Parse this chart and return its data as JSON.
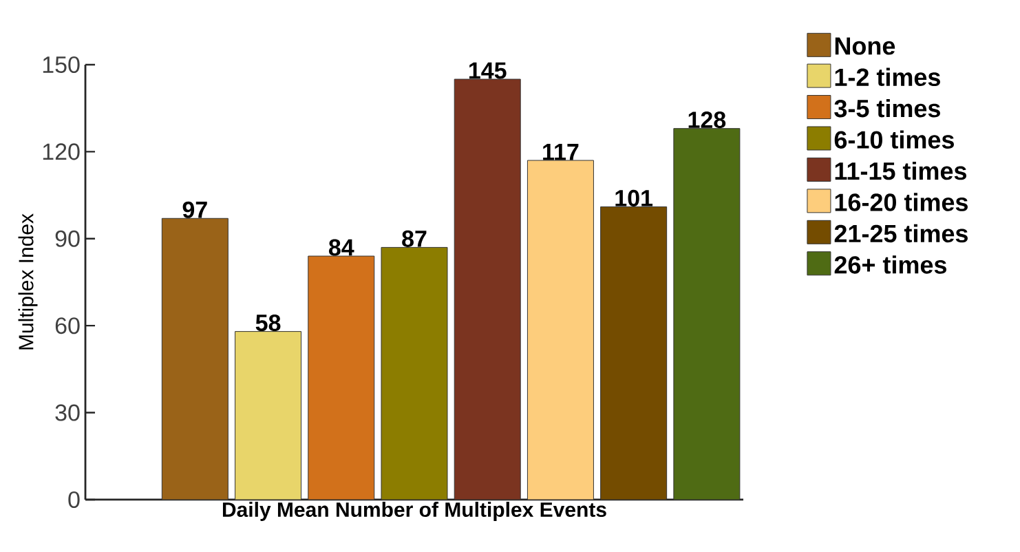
{
  "chart_data": {
    "type": "bar",
    "xlabel": "Daily Mean Number of Multiplex Events",
    "ylabel": "Multiplex Index",
    "categories": [
      null,
      null,
      null,
      null,
      null,
      null,
      null,
      null,
      null
    ],
    "series": [
      {
        "name": "None",
        "color": "#9a6318",
        "values": [
          null,
          97,
          null,
          null,
          null,
          null,
          null,
          null,
          null
        ]
      },
      {
        "name": "1-2 times",
        "color": "#e8d56a",
        "values": [
          null,
          null,
          58,
          null,
          null,
          null,
          null,
          null,
          null
        ]
      },
      {
        "name": "3-5 times",
        "color": "#d2711b",
        "values": [
          null,
          null,
          null,
          84,
          null,
          null,
          null,
          null,
          null
        ]
      },
      {
        "name": "6-10 times",
        "color": "#8c7d00",
        "values": [
          null,
          null,
          null,
          null,
          87,
          null,
          null,
          null,
          null
        ]
      },
      {
        "name": "11-15 times",
        "color": "#7b3420",
        "values": [
          null,
          null,
          null,
          null,
          null,
          145,
          null,
          null,
          null
        ]
      },
      {
        "name": "16-20 times",
        "color": "#fdcd7c",
        "values": [
          null,
          null,
          null,
          null,
          null,
          null,
          117,
          null,
          null
        ]
      },
      {
        "name": "21-25 times",
        "color": "#744c00",
        "values": [
          null,
          null,
          null,
          null,
          null,
          null,
          null,
          101,
          null
        ]
      },
      {
        "name": "26+ times",
        "color": "#4f6b14",
        "values": [
          null,
          null,
          null,
          null,
          null,
          null,
          null,
          null,
          128
        ]
      }
    ],
    "ylim": [
      0,
      150
    ],
    "yticks": [
      0,
      30,
      60,
      90,
      120,
      150
    ],
    "data_labels": true,
    "legend": "right",
    "grid": false
  }
}
